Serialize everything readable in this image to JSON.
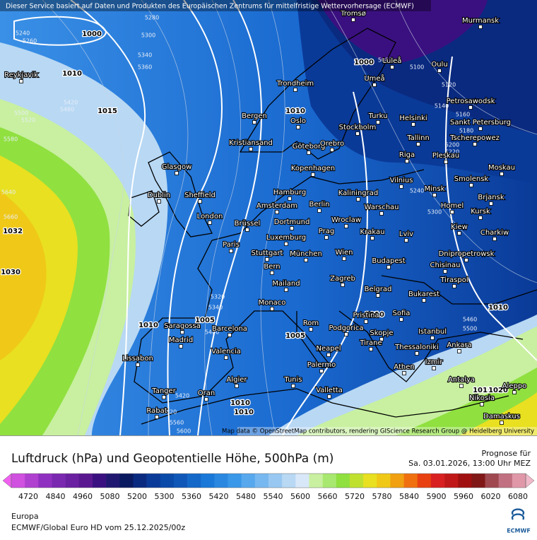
{
  "header": {
    "notice": "Dieser Service basiert auf Daten und Produkten des Europäischen Zentrums für mittelfristige Wettervorhersage (ECMWF)"
  },
  "map": {
    "cities": [
      "Reykjavik",
      "Tromsø",
      "Murmansk",
      "Luleå",
      "Oulu",
      "Umeå",
      "Trondheim",
      "Bergen",
      "Oslo",
      "Turku",
      "Helsinki",
      "Petrosawodsk",
      "Sankt Petersburg",
      "Stockholm",
      "Kristiansand",
      "Göteborg",
      "Orebro",
      "Tallinn",
      "Tscherepowez",
      "Riga",
      "Pleskau",
      "Glasgow",
      "Kopenhagen",
      "Moskau",
      "Vilnius",
      "Smolensk",
      "Hamburg",
      "Kaliningrad",
      "Minsk",
      "Dublin",
      "Sheffield",
      "Amsterdam",
      "Berlin",
      "Warschau",
      "Brjansk",
      "Homel",
      "London",
      "Brüssel",
      "Dortmund",
      "Wroclaw",
      "Kursk",
      "Krakau",
      "Prag",
      "Kiew",
      "Luxemburg",
      "Lviv",
      "Charkiw",
      "Paris",
      "Stuttgart",
      "München",
      "Wien",
      "Dnipropetrowsk",
      "Budapest",
      "Chisinau",
      "Bern",
      "Mailand",
      "Tiraspol",
      "Zagreb",
      "Belgrad",
      "Bukarest",
      "Monaco",
      "Pristina",
      "Sofia",
      "Saragossa",
      "Barcelona",
      "Rom",
      "Podgorica",
      "Istanbul",
      "Madrid",
      "Skopje",
      "Tirane",
      "Thessaloniki",
      "Ankara",
      "Neapel",
      "Valencia",
      "Lissabon",
      "Athen",
      "Izmir",
      "Palermo",
      "Algier",
      "Tunis",
      "Antalya",
      "Aleppo",
      "Tanger",
      "Oran",
      "Valletta",
      "Nikosia",
      "Rabat",
      "Damaskus"
    ],
    "pressure_labels": [
      1032,
      1030,
      1015,
      1010,
      1000,
      1010,
      1010,
      1005,
      1000,
      1010,
      1010,
      1015,
      1020,
      1010,
      1005,
      1010
    ],
    "height_labels": [
      5240,
      5260,
      5280,
      5300,
      5340,
      5360,
      5420,
      5480,
      5500,
      5520,
      5580,
      5640,
      5660,
      5320,
      5340,
      5400,
      5420,
      5520,
      5560,
      5600,
      5080,
      5100,
      5120,
      5140,
      5160,
      5180,
      5200,
      5220,
      5240,
      5300,
      5460,
      5500
    ],
    "attribution": "Map data © OpenStreetMap contributors, rendering GIScience Research Group @ Heidelberg University"
  },
  "title": "Luftdruck (hPa) und Geopotentielle Höhe, 500hPa (m)",
  "forecast": {
    "label": "Prognose für",
    "time": "Sa. 03.01.2026, 13:00 Uhr MEZ"
  },
  "legend": {
    "ticks": [
      4720,
      4840,
      4960,
      5080,
      5200,
      5300,
      5360,
      5420,
      5480,
      5540,
      5600,
      5660,
      5720,
      5780,
      5840,
      5900,
      5960,
      6020,
      6080
    ],
    "colors": [
      "#d050e0",
      "#b040d0",
      "#9030c0",
      "#7a28b0",
      "#6a20a0",
      "#5a1890",
      "#3a1080",
      "#201870",
      "#0a1a60",
      "#0a2a80",
      "#0a3a98",
      "#0a4aa8",
      "#1058b8",
      "#1468c8",
      "#1a78d8",
      "#2a88e0",
      "#3a98e8",
      "#58a8ee",
      "#78b8f0",
      "#98c8f2",
      "#b8d8f4",
      "#d8e8f8",
      "#c8f0a0",
      "#a8e870",
      "#90e040",
      "#c0e030",
      "#e8e020",
      "#f0c818",
      "#f0a010",
      "#f07010",
      "#e84010",
      "#d82020",
      "#c01818",
      "#a01010",
      "#801818",
      "#a04850",
      "#c07080",
      "#e098a8"
    ],
    "low_arrow_color": "#f060f0",
    "high_arrow_color": "#f0b8c8"
  },
  "footer": {
    "region": "Europa",
    "model": "ECMWF/Global Euro HD vom  25.12.2025/00z",
    "logo": "ECMWF"
  }
}
